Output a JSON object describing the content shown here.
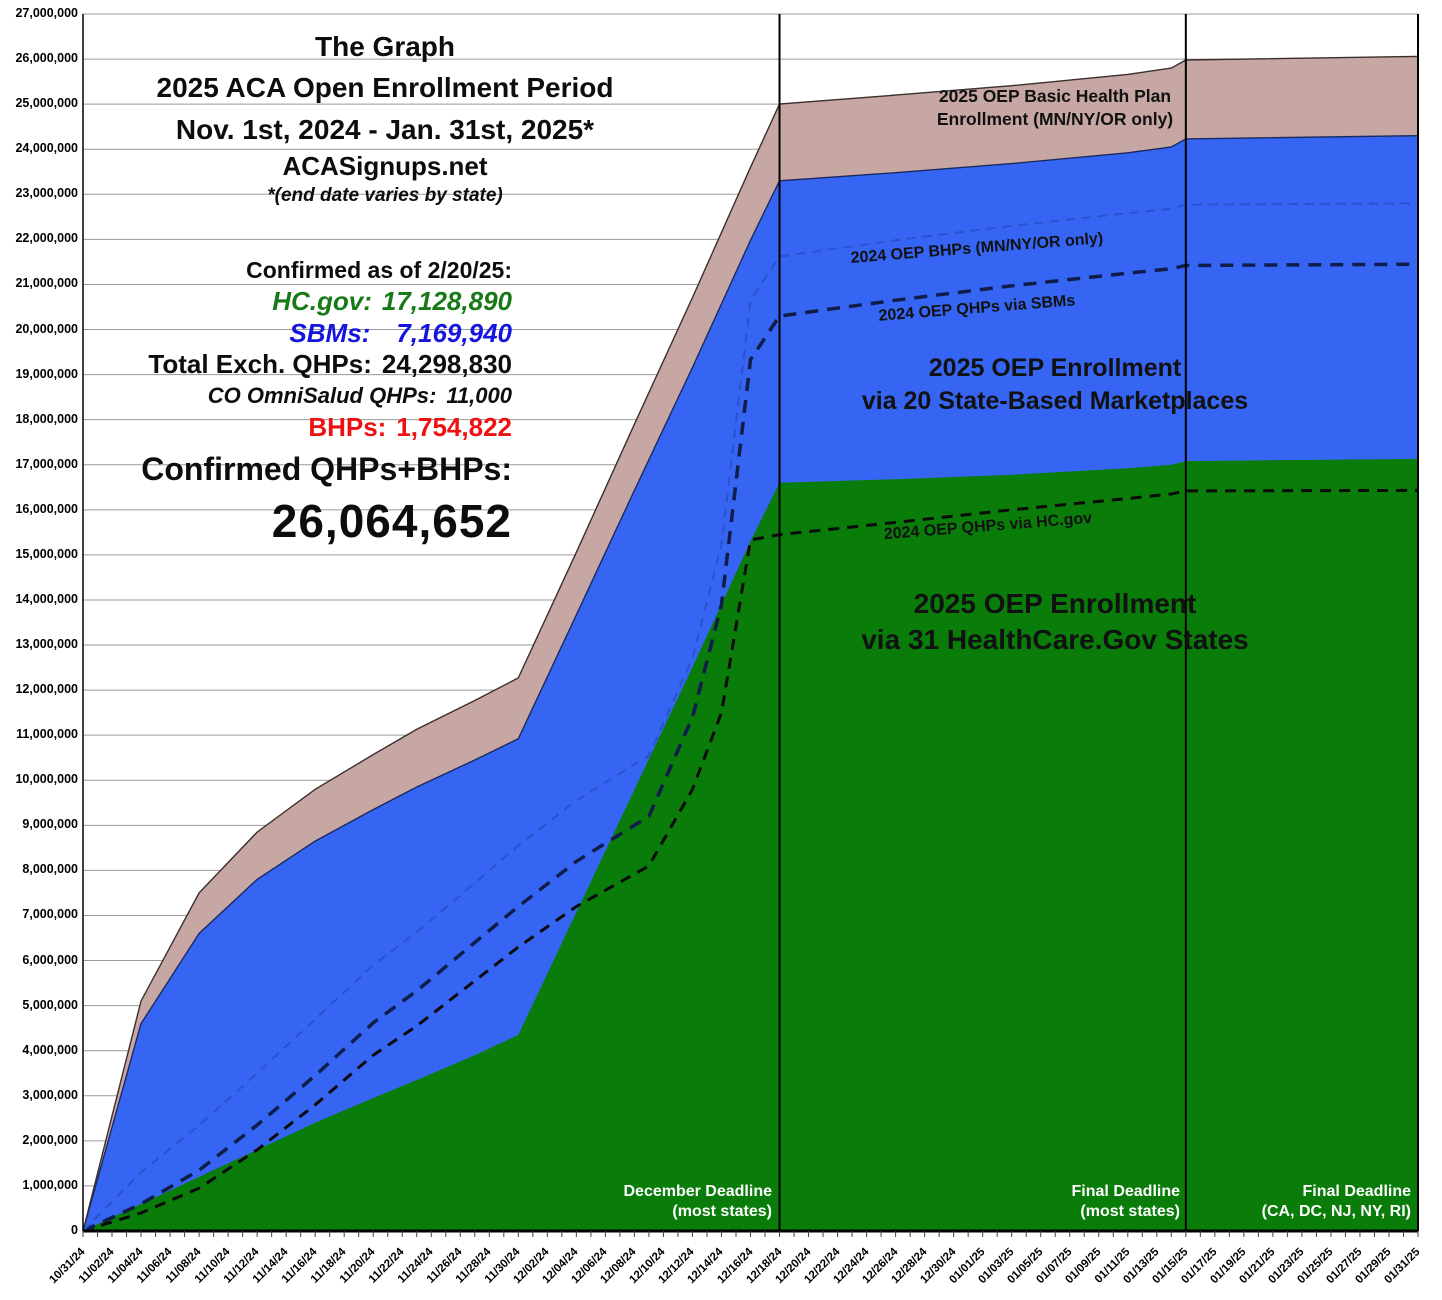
{
  "title": {
    "line1": "The Graph",
    "line2": "2025 ACA Open Enrollment Period",
    "line3": "Nov. 1st, 2024 - Jan. 31st, 2025*",
    "site": "ACASignups.net",
    "note": "*(end date varies by state)"
  },
  "stats": {
    "as_of": "Confirmed as of 2/20/25:",
    "hcgov_label": "HC.gov:",
    "hcgov_value": "17,128,890",
    "sbm_label": "SBMs:",
    "sbm_value": "7,169,940",
    "total_label": "Total Exch. QHPs:",
    "total_value": "24,298,830",
    "omnisalud_label": "CO OmniSalud QHPs:",
    "omnisalud_value": "11,000",
    "bhp_label": "BHPs:",
    "bhp_value": "1,754,822",
    "confirmed_label": "Confirmed QHPs+BHPs:",
    "confirmed_total": "26,064,652"
  },
  "colors": {
    "hcgov_green": "#0a7c0a",
    "sbm_blue": "#3565f2",
    "bhp_pink": "#c7a7a3",
    "stat_green": "#177a17",
    "stat_blue": "#1515dd",
    "stat_red": "#ee1111",
    "deadline_line": "#000000",
    "grid": "#9a9a9a"
  },
  "chart_data": {
    "type": "area",
    "unit": "millions of enrollees",
    "x_start_date": "10/31/24",
    "x_days": 92,
    "ylim": [
      0,
      27000000
    ],
    "grid": "horizontal only",
    "x_labels": [
      "10/31/24",
      "11/02/24",
      "11/04/24",
      "11/06/24",
      "11/08/24",
      "11/10/24",
      "11/12/24",
      "11/14/24",
      "11/16/24",
      "11/18/24",
      "11/20/24",
      "11/22/24",
      "11/24/24",
      "11/26/24",
      "11/28/24",
      "11/30/24",
      "12/02/24",
      "12/04/24",
      "12/06/24",
      "12/08/24",
      "12/10/24",
      "12/12/24",
      "12/14/24",
      "12/16/24",
      "12/18/24",
      "12/20/24",
      "12/22/24",
      "12/24/24",
      "12/26/24",
      "12/28/24",
      "12/30/24",
      "01/01/25",
      "01/03/25",
      "01/05/25",
      "01/07/25",
      "01/09/25",
      "01/11/25",
      "01/13/25",
      "01/15/25",
      "01/17/25",
      "01/19/25",
      "01/21/25",
      "01/23/25",
      "01/25/25",
      "01/27/25",
      "01/29/25",
      "01/31/25"
    ],
    "y_tick_labels": [
      "0",
      "1,000,000",
      "2,000,000",
      "3,000,000",
      "4,000,000",
      "5,000,000",
      "6,000,000",
      "7,000,000",
      "8,000,000",
      "9,000,000",
      "10,000,000",
      "11,000,000",
      "12,000,000",
      "13,000,000",
      "14,000,000",
      "15,000,000",
      "16,000,000",
      "17,000,000",
      "18,000,000",
      "19,000,000",
      "20,000,000",
      "21,000,000",
      "22,000,000",
      "23,000,000",
      "24,000,000",
      "25,000,000",
      "26,000,000",
      "27,000,000"
    ],
    "series": [
      {
        "name": "2025 OEP QHPs via HealthCare.gov (cumulative, stacked top)",
        "kind": "area",
        "color": "#0a7c0a",
        "edge": "none",
        "points": [
          [
            0,
            0
          ],
          [
            4,
            0.6
          ],
          [
            8,
            1.2
          ],
          [
            12,
            1.8
          ],
          [
            16,
            2.4
          ],
          [
            20,
            2.95
          ],
          [
            23,
            3.35
          ],
          [
            27,
            3.9
          ],
          [
            30,
            4.35
          ],
          [
            34,
            7.07
          ],
          [
            38,
            9.79
          ],
          [
            42,
            12.51
          ],
          [
            46,
            15.3
          ],
          [
            48,
            16.6
          ],
          [
            56,
            16.68
          ],
          [
            64,
            16.78
          ],
          [
            72,
            16.92
          ],
          [
            75,
            17.0
          ],
          [
            76,
            17.08
          ],
          [
            92,
            17.13
          ]
        ]
      },
      {
        "name": "2025 OEP QHPs total incl. 20 State-Based Marketplaces (stacked top)",
        "kind": "area",
        "color": "#3565f2",
        "edge": "#1a2a60",
        "points": [
          [
            0,
            0
          ],
          [
            2,
            2.3
          ],
          [
            4,
            4.6
          ],
          [
            8,
            6.6
          ],
          [
            12,
            7.8
          ],
          [
            16,
            8.65
          ],
          [
            20,
            9.35
          ],
          [
            23,
            9.85
          ],
          [
            27,
            10.45
          ],
          [
            30,
            10.92
          ],
          [
            34,
            13.67
          ],
          [
            38,
            16.43
          ],
          [
            42,
            19.16
          ],
          [
            46,
            21.98
          ],
          [
            48,
            23.3
          ],
          [
            56,
            23.48
          ],
          [
            64,
            23.68
          ],
          [
            72,
            23.92
          ],
          [
            75,
            24.05
          ],
          [
            76,
            24.23
          ],
          [
            92,
            24.3
          ]
        ]
      },
      {
        "name": "2025 OEP QHPs+BHPs total incl. Basic Health Plans MN/NY/OR (stacked top)",
        "kind": "area",
        "color": "#c7a7a3",
        "edge": "#3a2f2d",
        "points": [
          [
            0,
            0
          ],
          [
            2,
            2.55
          ],
          [
            4,
            5.1
          ],
          [
            8,
            7.5
          ],
          [
            12,
            8.85
          ],
          [
            16,
            9.8
          ],
          [
            20,
            10.57
          ],
          [
            23,
            11.13
          ],
          [
            27,
            11.77
          ],
          [
            30,
            12.27
          ],
          [
            34,
            15.06
          ],
          [
            38,
            17.9
          ],
          [
            42,
            20.71
          ],
          [
            46,
            23.6
          ],
          [
            48,
            25.0
          ],
          [
            56,
            25.2
          ],
          [
            64,
            25.41
          ],
          [
            72,
            25.66
          ],
          [
            75,
            25.8
          ],
          [
            76,
            25.98
          ],
          [
            92,
            26.06
          ]
        ]
      },
      {
        "name": "2024 OEP QHPs via HC.gov (cumulative)",
        "kind": "dashed",
        "color": "#0b0b0b",
        "width": 3,
        "dash": "11,8",
        "points": [
          [
            0,
            0
          ],
          [
            4,
            0.4
          ],
          [
            8,
            0.95
          ],
          [
            12,
            1.8
          ],
          [
            16,
            2.8
          ],
          [
            20,
            3.9
          ],
          [
            23,
            4.55
          ],
          [
            27,
            5.55
          ],
          [
            30,
            6.3
          ],
          [
            34,
            7.2
          ],
          [
            39,
            8.1
          ],
          [
            42,
            9.8
          ],
          [
            44,
            11.5
          ],
          [
            46,
            15.33
          ],
          [
            48,
            15.45
          ],
          [
            56,
            15.72
          ],
          [
            64,
            16.0
          ],
          [
            72,
            16.25
          ],
          [
            75,
            16.35
          ],
          [
            76,
            16.42
          ],
          [
            92,
            16.43
          ]
        ]
      },
      {
        "name": "2024 OEP QHPs via SBMs (cumulative total QHPs)",
        "kind": "dashed",
        "color": "#101d4a",
        "width": 3.5,
        "dash": "13,9",
        "points": [
          [
            0,
            0
          ],
          [
            4,
            0.6
          ],
          [
            8,
            1.35
          ],
          [
            12,
            2.35
          ],
          [
            16,
            3.45
          ],
          [
            20,
            4.62
          ],
          [
            23,
            5.33
          ],
          [
            27,
            6.4
          ],
          [
            30,
            7.2
          ],
          [
            34,
            8.2
          ],
          [
            39,
            9.2
          ],
          [
            42,
            11.4
          ],
          [
            44,
            13.9
          ],
          [
            46,
            19.33
          ],
          [
            48,
            20.3
          ],
          [
            56,
            20.65
          ],
          [
            64,
            20.97
          ],
          [
            72,
            21.25
          ],
          [
            75,
            21.35
          ],
          [
            76,
            21.42
          ],
          [
            92,
            21.45
          ]
        ]
      },
      {
        "name": "2024 OEP BHPs MN/NY/OR (cumulative total QHPs+BHPs)",
        "kind": "dashed",
        "color": "#2b51cc",
        "width": 2,
        "dash": "9,7",
        "points": [
          [
            0,
            0
          ],
          [
            4,
            1.3
          ],
          [
            8,
            2.35
          ],
          [
            12,
            3.5
          ],
          [
            16,
            4.7
          ],
          [
            20,
            5.9
          ],
          [
            23,
            6.63
          ],
          [
            27,
            7.72
          ],
          [
            30,
            8.55
          ],
          [
            34,
            9.55
          ],
          [
            39,
            10.55
          ],
          [
            42,
            12.72
          ],
          [
            44,
            15.22
          ],
          [
            46,
            20.65
          ],
          [
            48,
            21.62
          ],
          [
            56,
            21.98
          ],
          [
            64,
            22.3
          ],
          [
            72,
            22.58
          ],
          [
            75,
            22.68
          ],
          [
            76,
            22.77
          ],
          [
            92,
            22.8
          ]
        ]
      }
    ],
    "area_labels": {
      "bhp_line1": "2025 OEP Basic Health Plan",
      "bhp_line2": "Enrollment (MN/NY/OR only)",
      "sbm_line1": "2025 OEP Enrollment",
      "sbm_line2": "via 20 State-Based Marketplaces",
      "hcgov_line1": "2025 OEP Enrollment",
      "hcgov_line2": "via 31 HealthCare.Gov States"
    },
    "line_labels": {
      "bhp_2024": "2024 OEP BHPs (MN/NY/OR only)",
      "sbm_2024": "2024 OEP QHPs via SBMs",
      "hcgov_2024": "2024 OEP QHPs via HC.gov"
    },
    "deadlines": [
      {
        "line1": "December Deadline",
        "line2": "(most states)",
        "day": 48
      },
      {
        "line1": "Final Deadline",
        "line2": "(most states)",
        "day": 76
      },
      {
        "line1": "Final Deadline",
        "line2": "(CA, DC, NJ, NY, RI)",
        "day": 92
      }
    ]
  }
}
